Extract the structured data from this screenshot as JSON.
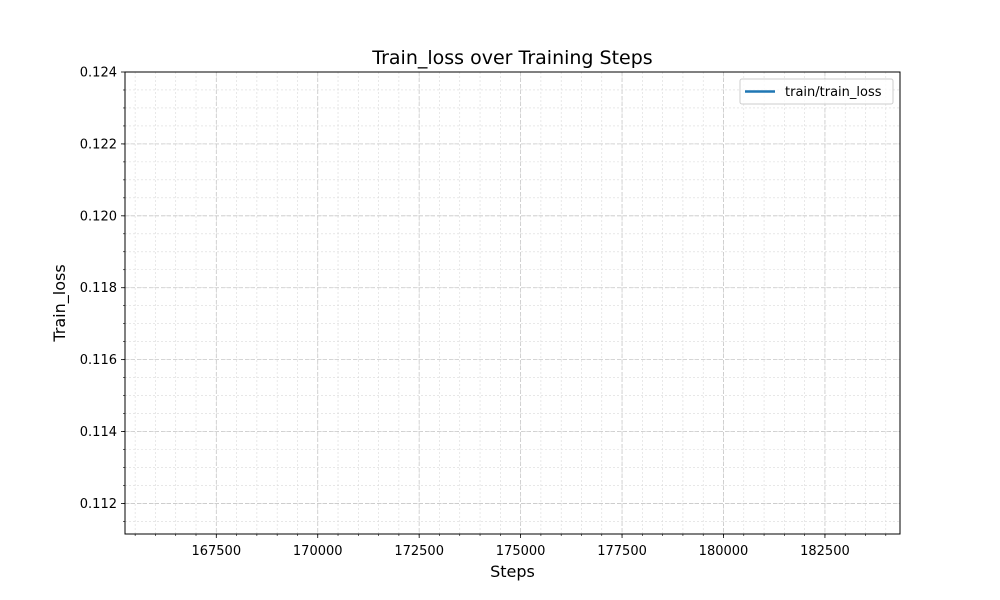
{
  "chart_data": {
    "type": "line",
    "title": "Train_loss over Training Steps",
    "xlabel": "Steps",
    "ylabel": "Train_loss",
    "xlim": [
      165250,
      184350
    ],
    "ylim": [
      0.11115,
      0.124
    ],
    "x_ticks": [
      167500,
      170000,
      172500,
      175000,
      177500,
      180000,
      182500
    ],
    "x_tick_labels": [
      "167500",
      "170000",
      "172500",
      "175000",
      "177500",
      "180000",
      "182500"
    ],
    "y_ticks": [
      0.112,
      0.114,
      0.116,
      0.118,
      0.12,
      0.122,
      0.124
    ],
    "y_tick_labels": [
      "0.112",
      "0.114",
      "0.116",
      "0.118",
      "0.120",
      "0.122",
      "0.124"
    ],
    "x_minor_step": 500,
    "y_minor_step": 0.0005,
    "grid": true,
    "legend_position": "top-right",
    "series": [
      {
        "name": "train/train_loss",
        "color": "#1f77b4",
        "x": [],
        "y": []
      }
    ]
  }
}
